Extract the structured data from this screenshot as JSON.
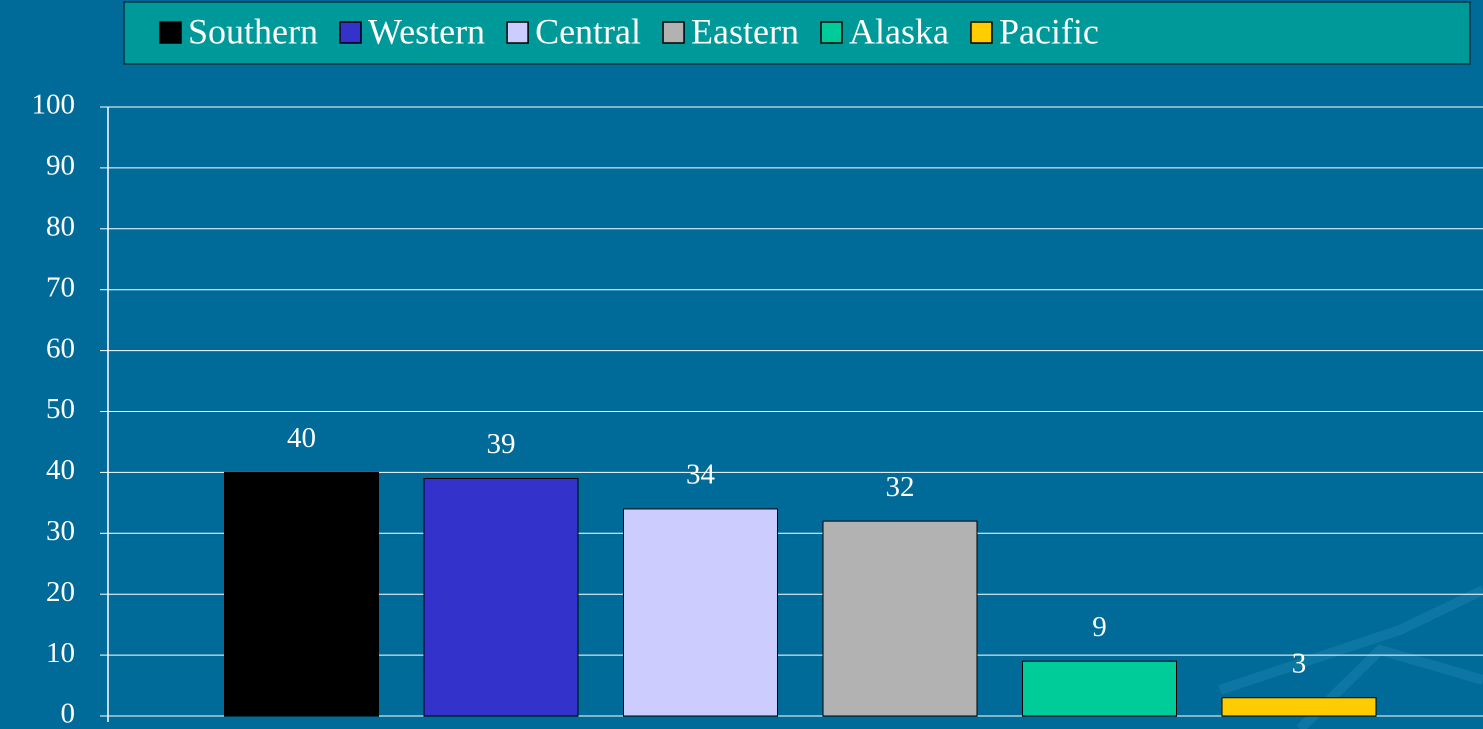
{
  "chart_data": {
    "type": "bar",
    "series": [
      {
        "name": "Southern",
        "color": "#000000",
        "values": [
          40
        ]
      },
      {
        "name": "Western",
        "color": "#3333cc",
        "values": [
          39
        ]
      },
      {
        "name": "Central",
        "color": "#ccccff",
        "values": [
          34
        ]
      },
      {
        "name": "Eastern",
        "color": "#b2b2b2",
        "values": [
          32
        ]
      },
      {
        "name": "Alaska",
        "color": "#00cc99",
        "values": [
          9
        ]
      },
      {
        "name": "Pacific",
        "color": "#ffcc00",
        "values": [
          3
        ]
      }
    ],
    "ylim": [
      0,
      100
    ],
    "yticks": [
      0,
      10,
      20,
      30,
      40,
      50,
      60,
      70,
      80,
      90,
      100
    ],
    "grid": true,
    "legend": "top"
  }
}
